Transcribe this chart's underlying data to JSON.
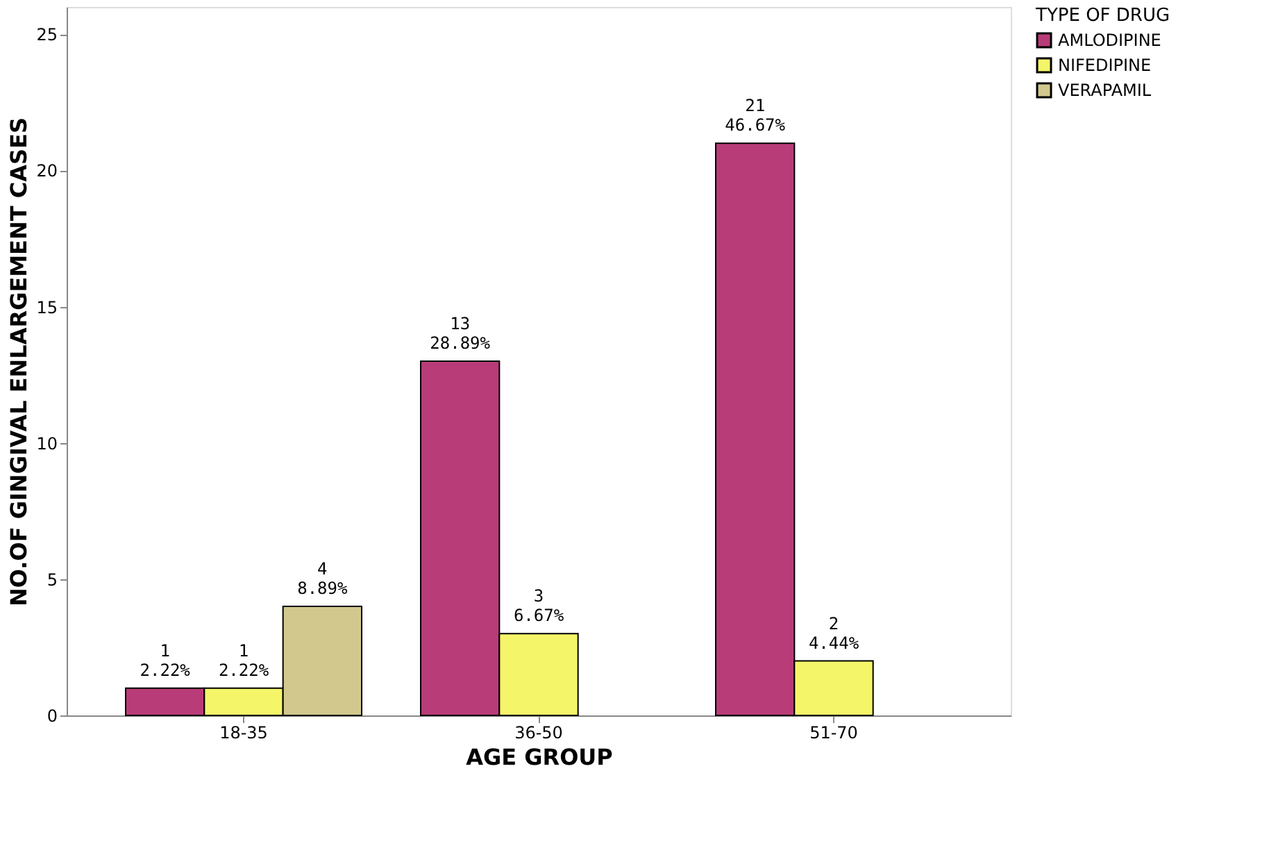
{
  "chart_data": {
    "type": "bar",
    "xlabel": "AGE GROUP",
    "ylabel": "NO.OF GINGIVAL ENLARGEMENT CASES",
    "legend_title": "TYPE OF DRUG",
    "legend": "top right",
    "grid": false,
    "categories": [
      "18-35",
      "36-50",
      "51-70"
    ],
    "ylim": [
      0,
      26
    ],
    "yticks": [
      0,
      5,
      10,
      15,
      20,
      25
    ],
    "series": [
      {
        "name": "AMLODIPINE",
        "color": "#b83c78",
        "values": [
          1,
          13,
          21
        ],
        "value_labels": [
          "1\n2.22%",
          "13\n28.89%",
          "21\n46.67%"
        ]
      },
      {
        "name": "NIFEDIPINE",
        "color": "#f5f56a",
        "values": [
          1,
          3,
          2
        ],
        "value_labels": [
          "1\n2.22%",
          "3\n6.67%",
          "2\n4.44%"
        ]
      },
      {
        "name": "VERAPAMIL",
        "color": "#d2c88e",
        "values": [
          4,
          null,
          null
        ],
        "value_labels": [
          "4\n8.89%",
          null,
          null
        ]
      }
    ]
  }
}
